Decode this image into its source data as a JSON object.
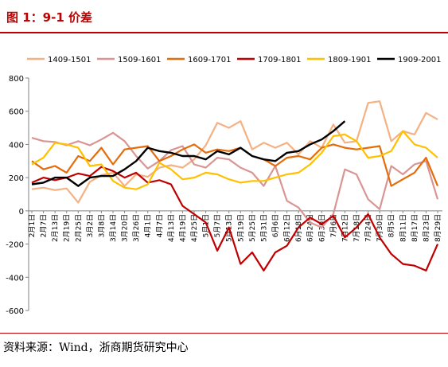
{
  "title": "图 1：9-1 价差",
  "source": "资料来源：Wind，浙商期货研究中心",
  "chart_data": {
    "type": "line",
    "title": "图 1：9-1 价差",
    "ylim": [
      -600,
      800
    ],
    "yticks": [
      -600,
      -400,
      -200,
      0,
      200,
      400,
      600,
      800
    ],
    "grid": false,
    "legend_position": "top",
    "categories": [
      "2月1日",
      "2月7日",
      "2月13日",
      "2月19日",
      "2月25日",
      "3月2日",
      "3月8日",
      "3月14日",
      "3月20日",
      "3月26日",
      "4月1日",
      "4月7日",
      "4月13日",
      "4月19日",
      "4月25日",
      "5月1日",
      "5月7日",
      "5月13日",
      "5月19日",
      "5月25日",
      "5月31日",
      "6月6日",
      "6月12日",
      "6月18日",
      "6月24日",
      "6月30日",
      "7月6日",
      "7月12日",
      "7月18日",
      "7月24日",
      "7月30日",
      "8月5日",
      "8月11日",
      "8月17日",
      "8月23日",
      "8月29日"
    ],
    "series": [
      {
        "name": "1409-1501",
        "color": "#f4b183",
        "values": [
          130,
          140,
          125,
          135,
          50,
          175,
          215,
          230,
          150,
          220,
          205,
          260,
          275,
          260,
          310,
          395,
          530,
          500,
          540,
          370,
          410,
          380,
          410,
          340,
          420,
          380,
          520,
          410,
          420,
          650,
          660,
          420,
          480,
          460,
          590,
          550
        ]
      },
      {
        "name": "1509-1601",
        "color": "#d99594",
        "values": [
          440,
          420,
          415,
          395,
          420,
          395,
          430,
          470,
          420,
          330,
          255,
          300,
          365,
          390,
          280,
          260,
          320,
          310,
          260,
          230,
          150,
          270,
          60,
          20,
          -70,
          -100,
          -20,
          250,
          220,
          70,
          10,
          270,
          220,
          280,
          300,
          70
        ]
      },
      {
        "name": "1609-1701",
        "color": "#e46c0a",
        "values": [
          300,
          250,
          270,
          230,
          330,
          300,
          380,
          280,
          370,
          380,
          390,
          300,
          330,
          370,
          400,
          350,
          370,
          360,
          380,
          330,
          310,
          270,
          320,
          330,
          310,
          380,
          400,
          380,
          370,
          380,
          390,
          150,
          190,
          230,
          320,
          150
        ]
      },
      {
        "name": "1709-1801",
        "color": "#c00000",
        "values": [
          170,
          200,
          185,
          200,
          225,
          210,
          265,
          240,
          200,
          230,
          170,
          185,
          160,
          30,
          -20,
          -70,
          -240,
          -100,
          -320,
          -250,
          -360,
          -250,
          -210,
          -100,
          -40,
          -80,
          -30,
          -160,
          -100,
          -20,
          -160,
          -260,
          -320,
          -330,
          -360,
          -200
        ]
      },
      {
        "name": "1809-1901",
        "color": "#ffc000",
        "values": [
          280,
          320,
          410,
          400,
          380,
          270,
          280,
          180,
          140,
          130,
          160,
          290,
          250,
          190,
          200,
          230,
          220,
          190,
          170,
          180,
          180,
          200,
          220,
          230,
          280,
          350,
          450,
          460,
          420,
          320,
          330,
          360,
          480,
          400,
          380,
          320
        ]
      },
      {
        "name": "1909-2001",
        "color": "#000000",
        "values": [
          160,
          170,
          200,
          200,
          150,
          200,
          210,
          210,
          250,
          300,
          380,
          360,
          350,
          330,
          330,
          310,
          360,
          340,
          380,
          330,
          310,
          300,
          350,
          360,
          400,
          430,
          480,
          540,
          null,
          null,
          null,
          null,
          null,
          null,
          null,
          null
        ]
      }
    ]
  }
}
